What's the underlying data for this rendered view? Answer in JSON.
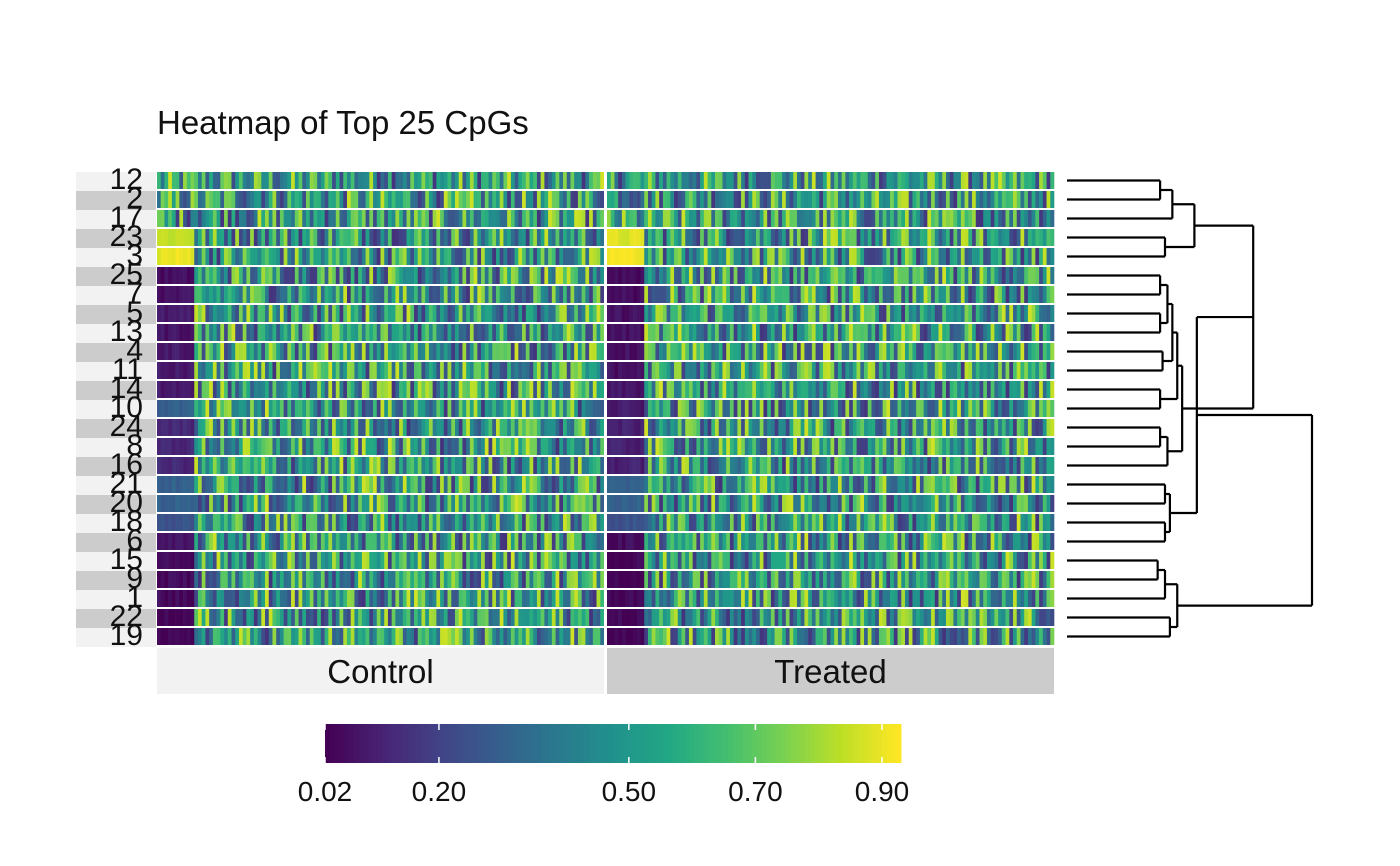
{
  "chart_data": {
    "type": "heatmap",
    "title": "Heatmap of Top 25 CpGs",
    "row_labels": [
      "12",
      "2",
      "17",
      "23",
      "3",
      "25",
      "7",
      "5",
      "13",
      "4",
      "11",
      "14",
      "10",
      "24",
      "8",
      "16",
      "21",
      "20",
      "18",
      "6",
      "15",
      "9",
      "1",
      "22",
      "19"
    ],
    "row_label_band_colors": [
      "#f2f2f2",
      "#cccccc"
    ],
    "column_groups": [
      {
        "label": "Control",
        "band_color": "#f2f2f2"
      },
      {
        "label": "Treated",
        "band_color": "#cccccc"
      }
    ],
    "columns_per_group": 120,
    "value_range": [
      0.02,
      0.93
    ],
    "colorbar": {
      "colorscale": "viridis",
      "tick_labels": [
        "0.02",
        "0.20",
        "0.50",
        "0.70",
        "0.90"
      ],
      "tick_values": [
        0.02,
        0.2,
        0.5,
        0.7,
        0.9
      ],
      "range": [
        0.02,
        0.93
      ]
    },
    "row_patterns": [
      {
        "row": "12",
        "Control_lead": null,
        "Treated_lead": null
      },
      {
        "row": "2",
        "Control_lead": null,
        "Treated_lead": null
      },
      {
        "row": "17",
        "Control_lead": null,
        "Treated_lead": null
      },
      {
        "row": "23",
        "Control_lead": 0.85,
        "Treated_lead": 0.88
      },
      {
        "row": "3",
        "Control_lead": 0.9,
        "Treated_lead": 0.92
      },
      {
        "row": "25",
        "Control_lead": 0.05,
        "Treated_lead": 0.05
      },
      {
        "row": "7",
        "Control_lead": 0.06,
        "Treated_lead": 0.05
      },
      {
        "row": "5",
        "Control_lead": 0.08,
        "Treated_lead": 0.06
      },
      {
        "row": "13",
        "Control_lead": 0.07,
        "Treated_lead": 0.06
      },
      {
        "row": "4",
        "Control_lead": 0.08,
        "Treated_lead": 0.06
      },
      {
        "row": "11",
        "Control_lead": 0.08,
        "Treated_lead": 0.06
      },
      {
        "row": "14",
        "Control_lead": 0.08,
        "Treated_lead": 0.07
      },
      {
        "row": "10",
        "Control_lead": 0.3,
        "Treated_lead": 0.08
      },
      {
        "row": "24",
        "Control_lead": 0.12,
        "Treated_lead": 0.1
      },
      {
        "row": "8",
        "Control_lead": 0.12,
        "Treated_lead": 0.1
      },
      {
        "row": "16",
        "Control_lead": 0.12,
        "Treated_lead": 0.1
      },
      {
        "row": "21",
        "Control_lead": 0.3,
        "Treated_lead": 0.3
      },
      {
        "row": "20",
        "Control_lead": 0.3,
        "Treated_lead": 0.3
      },
      {
        "row": "18",
        "Control_lead": 0.25,
        "Treated_lead": 0.25
      },
      {
        "row": "6",
        "Control_lead": 0.06,
        "Treated_lead": 0.05
      },
      {
        "row": "15",
        "Control_lead": 0.05,
        "Treated_lead": 0.03
      },
      {
        "row": "9",
        "Control_lead": 0.04,
        "Treated_lead": 0.03
      },
      {
        "row": "1",
        "Control_lead": 0.04,
        "Treated_lead": 0.03
      },
      {
        "row": "22",
        "Control_lead": 0.04,
        "Treated_lead": 0.03
      },
      {
        "row": "19",
        "Control_lead": 0.02,
        "Treated_lead": 0.02
      }
    ],
    "dendrogram": {
      "orientation": "rows",
      "merges": [
        [
          0,
          1,
          0.1
        ],
        [
          3,
          4,
          0.1
        ],
        [
          5,
          6,
          0.08
        ],
        [
          7,
          8,
          0.08
        ],
        [
          9,
          10,
          0.05
        ],
        [
          11,
          12,
          0.1
        ],
        [
          13,
          14,
          0.1
        ],
        [
          16,
          17,
          0.05
        ],
        [
          18,
          19,
          0.05
        ],
        [
          20,
          21,
          0.1
        ],
        [
          22,
          23,
          0.1
        ]
      ],
      "height_max": 1.0
    }
  }
}
